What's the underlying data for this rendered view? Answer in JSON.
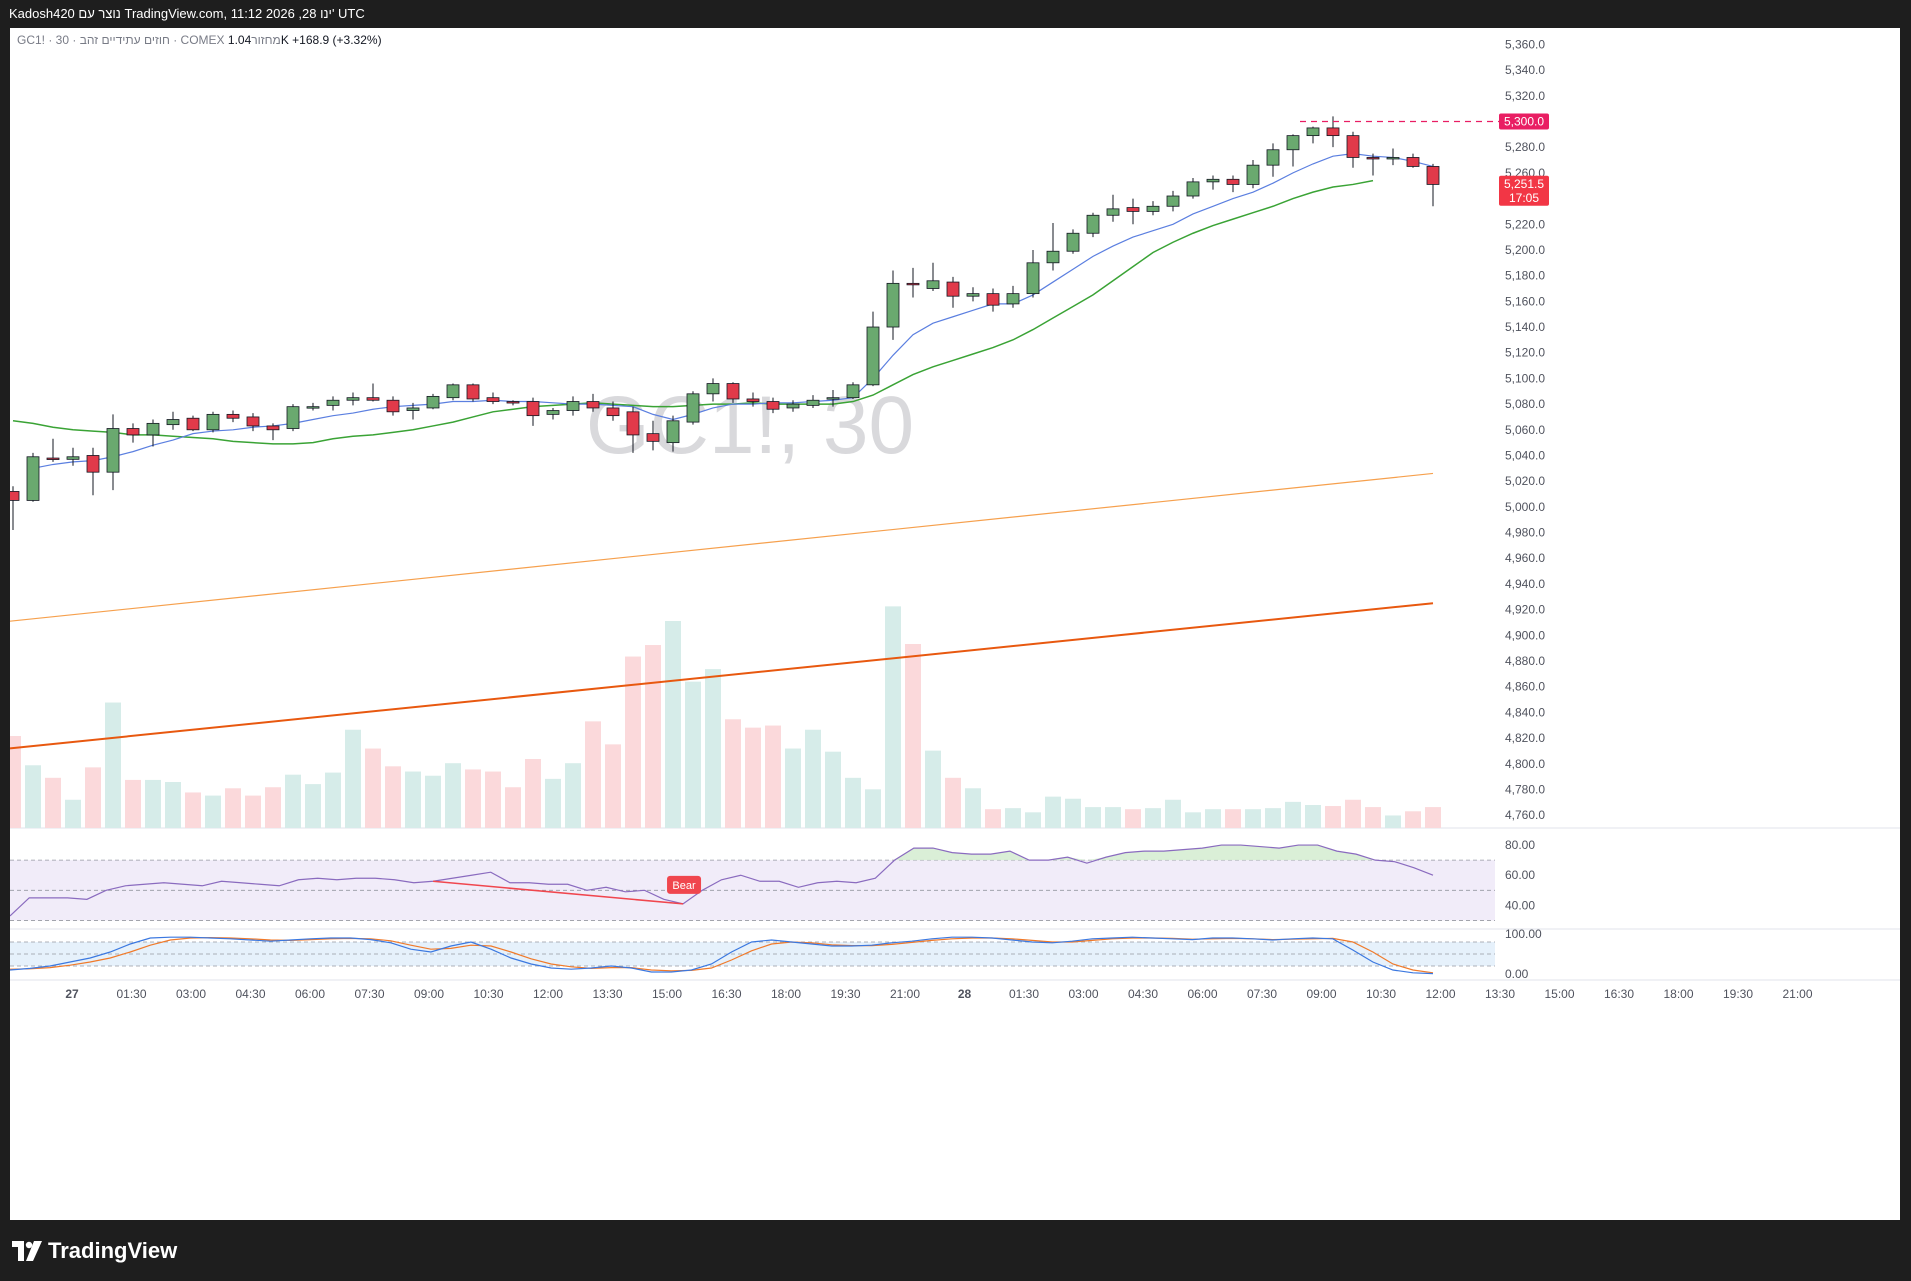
{
  "header": {
    "info": "Kadosh420 נוצר עם TradingView.com, 11:12 2026 ,28 ינו' UTC"
  },
  "legend": {
    "symbol": "GC1! · 30 · חוזים עתידיים זהב · COMEX",
    "volume_label": "מחזור",
    "volume_value": "1.04K",
    "change": "+168.9 (+3.32%)"
  },
  "watermark": "GC1!, 30",
  "footer": {
    "brand": "TradingView"
  },
  "colors": {
    "up": "#6aa96f",
    "down": "#e13a4a",
    "ema_fast": "#5b7fe0",
    "ema_mid": "#3aa335",
    "ema_slow": "#f6a04d",
    "ema_long": "#e8580f",
    "rsi": "#8a6bbf",
    "stoch_k": "#3b78e0",
    "stoch_d": "#f07a2a",
    "alert": "#e91e63",
    "bear": "#f0464e"
  },
  "chart_data": {
    "type": "candlestick",
    "symbol": "GC1!",
    "interval": "30",
    "ylim": [
      4750,
      5365
    ],
    "price_ticks": [
      "5,360.0",
      "5,340.0",
      "5,320.0",
      "5,300.0",
      "5,280.0",
      "5,260.0",
      "5,240.0",
      "5,220.0",
      "5,200.0",
      "5,180.0",
      "5,160.0",
      "5,140.0",
      "5,120.0",
      "5,100.0",
      "5,080.0",
      "5,060.0",
      "5,040.0",
      "5,020.0",
      "5,000.0",
      "4,980.0",
      "4,960.0",
      "4,940.0",
      "4,920.0",
      "4,900.0",
      "4,880.0",
      "4,860.0",
      "4,840.0",
      "4,820.0",
      "4,800.0",
      "4,780.0",
      "4,760.0"
    ],
    "time_labels": [
      "27",
      "01:30",
      "03:00",
      "04:30",
      "06:00",
      "07:30",
      "09:00",
      "10:30",
      "12:00",
      "13:30",
      "15:00",
      "16:30",
      "18:00",
      "19:30",
      "21:00",
      "28",
      "01:30",
      "03:00",
      "04:30",
      "06:00",
      "07:30",
      "09:00",
      "10:30",
      "12:00",
      "13:30",
      "15:00",
      "16:30",
      "18:00",
      "19:30",
      "21:00"
    ],
    "candles": [
      [
        5012,
        5016,
        4982,
        5005
      ],
      [
        5005,
        5042,
        5004,
        5039
      ],
      [
        5038,
        5053,
        5035,
        5037
      ],
      [
        5037,
        5046,
        5032,
        5039
      ],
      [
        5040,
        5046,
        5009,
        5027
      ],
      [
        5027,
        5072,
        5013,
        5061
      ],
      [
        5061,
        5065,
        5050,
        5056
      ],
      [
        5056,
        5068,
        5047,
        5065
      ],
      [
        5064,
        5074,
        5060,
        5068
      ],
      [
        5069,
        5071,
        5059,
        5060
      ],
      [
        5060,
        5074,
        5058,
        5072
      ],
      [
        5072,
        5075,
        5066,
        5069
      ],
      [
        5070,
        5073,
        5059,
        5063
      ],
      [
        5063,
        5065,
        5052,
        5060
      ],
      [
        5061,
        5080,
        5059,
        5078
      ],
      [
        5078,
        5081,
        5075,
        5078
      ],
      [
        5079,
        5086,
        5075,
        5083
      ],
      [
        5083,
        5089,
        5079,
        5085
      ],
      [
        5085,
        5096,
        5082,
        5083
      ],
      [
        5083,
        5086,
        5071,
        5074
      ],
      [
        5075,
        5081,
        5068,
        5077
      ],
      [
        5077,
        5088,
        5076,
        5086
      ],
      [
        5085,
        5096,
        5083,
        5095
      ],
      [
        5095,
        5096,
        5082,
        5084
      ],
      [
        5085,
        5089,
        5080,
        5082
      ],
      [
        5082,
        5083,
        5079,
        5081
      ],
      [
        5082,
        5085,
        5063,
        5071
      ],
      [
        5072,
        5077,
        5068,
        5075
      ],
      [
        5075,
        5086,
        5071,
        5082
      ],
      [
        5082,
        5088,
        5074,
        5077
      ],
      [
        5077,
        5082,
        5067,
        5071
      ],
      [
        5074,
        5078,
        5042,
        5056
      ],
      [
        5057,
        5067,
        5044,
        5051
      ],
      [
        5050,
        5071,
        5043,
        5067
      ],
      [
        5066,
        5090,
        5064,
        5088
      ],
      [
        5088,
        5100,
        5082,
        5096
      ],
      [
        5096,
        5097,
        5081,
        5084
      ],
      [
        5084,
        5089,
        5078,
        5082
      ],
      [
        5082,
        5085,
        5073,
        5076
      ],
      [
        5077,
        5083,
        5074,
        5080
      ],
      [
        5079,
        5087,
        5077,
        5083
      ],
      [
        5084,
        5091,
        5078,
        5085
      ],
      [
        5085,
        5097,
        5084,
        5095
      ],
      [
        5095,
        5152,
        5094,
        5140
      ],
      [
        5140,
        5184,
        5130,
        5174
      ],
      [
        5174,
        5186,
        5163,
        5173
      ],
      [
        5170,
        5190,
        5168,
        5176
      ],
      [
        5175,
        5179,
        5155,
        5164
      ],
      [
        5164,
        5171,
        5160,
        5166
      ],
      [
        5166,
        5170,
        5152,
        5157
      ],
      [
        5158,
        5172,
        5155,
        5166
      ],
      [
        5166,
        5200,
        5163,
        5190
      ],
      [
        5190,
        5221,
        5184,
        5199
      ],
      [
        5199,
        5216,
        5197,
        5213
      ],
      [
        5213,
        5229,
        5210,
        5227
      ],
      [
        5227,
        5243,
        5222,
        5232
      ],
      [
        5233,
        5240,
        5220,
        5230
      ],
      [
        5230,
        5238,
        5227,
        5234
      ],
      [
        5234,
        5246,
        5230,
        5242
      ],
      [
        5242,
        5256,
        5240,
        5253
      ],
      [
        5253,
        5258,
        5247,
        5255
      ],
      [
        5255,
        5258,
        5245,
        5251
      ],
      [
        5251,
        5270,
        5248,
        5266
      ],
      [
        5266,
        5283,
        5257,
        5278
      ],
      [
        5278,
        5290,
        5265,
        5289
      ],
      [
        5289,
        5296,
        5283,
        5295
      ],
      [
        5295,
        5304,
        5280,
        5289
      ],
      [
        5289,
        5292,
        5264,
        5272
      ],
      [
        5272,
        5275,
        5258,
        5271
      ],
      [
        5271,
        5279,
        5266,
        5272
      ],
      [
        5272,
        5275,
        5264,
        5265
      ],
      [
        5265,
        5267,
        5234,
        5251
      ]
    ],
    "volume": [
      440,
      300,
      240,
      135,
      290,
      600,
      230,
      230,
      220,
      170,
      155,
      190,
      155,
      195,
      255,
      210,
      265,
      470,
      380,
      295,
      270,
      250,
      310,
      280,
      270,
      195,
      330,
      235,
      310,
      510,
      400,
      820,
      875,
      990,
      700,
      760,
      520,
      480,
      490,
      380,
      470,
      365,
      240,
      185,
      1060,
      880,
      370,
      240,
      190,
      90,
      95,
      75,
      150,
      140,
      100,
      100,
      90,
      95,
      135,
      75,
      90,
      90,
      90,
      95,
      125,
      110,
      105,
      135,
      100,
      60,
      80,
      100
    ],
    "ema_fast": [
      null,
      5030,
      5033,
      5035,
      5036,
      5039,
      5043,
      5048,
      5052,
      5057,
      5059,
      5060,
      5062,
      5063,
      5065,
      5068,
      5071,
      5073,
      5076,
      5078,
      5079,
      5080,
      5082,
      5082,
      5083,
      5082,
      5082,
      5081,
      5080,
      5080,
      5079,
      5078,
      5072,
      5068,
      5072,
      5077,
      5080,
      5080,
      5081,
      5081,
      5082,
      5083,
      5085,
      5100,
      5118,
      5134,
      5143,
      5148,
      5153,
      5158,
      5158,
      5165,
      5175,
      5185,
      5195,
      5203,
      5210,
      5215,
      5220,
      5228,
      5234,
      5240,
      5245,
      5252,
      5260,
      5267,
      5273,
      5275,
      5273,
      5272,
      5269,
      5265
    ],
    "ema_mid": [
      5067,
      5065,
      5062,
      5060,
      5059,
      5058,
      5056,
      5056,
      5055,
      5054,
      5053,
      5051,
      5050,
      5049,
      5049,
      5050,
      5053,
      5055,
      5056,
      5058,
      5060,
      5063,
      5066,
      5070,
      5074,
      5076,
      5078,
      5079,
      5080,
      5081,
      5080,
      5079,
      5078,
      5078,
      5079,
      5080,
      5080,
      5081,
      5080,
      5080,
      5080,
      5080,
      5082,
      5087,
      5095,
      5103,
      5109,
      5114,
      5119,
      5124,
      5130,
      5138,
      5147,
      5156,
      5165,
      5176,
      5187,
      5198,
      5206,
      5213,
      5219,
      5224,
      5229,
      5234,
      5240,
      5245,
      5249,
      5251,
      5254
    ],
    "ema_slow": [
      4911,
      5026
    ],
    "ema_long": [
      4812,
      4925
    ],
    "alert_price": 5300,
    "last_price": "5,251.5",
    "countdown": "17:05",
    "rsi": {
      "ticks": [
        "80.00",
        "60.00",
        "40.00"
      ],
      "upper": 70,
      "middle": 50,
      "lower": 30,
      "values": [
        33,
        45,
        45,
        45,
        44,
        50,
        53,
        54,
        55,
        54,
        53,
        56,
        55,
        54,
        53,
        57,
        58,
        57,
        58,
        58,
        57,
        55,
        56,
        58,
        60,
        62,
        55,
        55,
        54,
        54,
        50,
        52,
        49,
        50,
        44,
        41,
        50,
        57,
        60,
        56,
        56,
        52,
        55,
        56,
        55,
        58,
        70,
        78,
        78,
        75,
        74,
        74,
        76,
        70,
        70,
        72,
        68,
        72,
        75,
        76,
        76,
        77,
        78,
        80,
        80,
        79,
        78,
        80,
        80,
        76,
        74,
        70,
        69,
        65,
        60
      ]
    },
    "rsi_divergence": {
      "label": "Bear",
      "from": 22,
      "to": 35
    },
    "stoch": {
      "ticks": [
        "100.00",
        "0.00"
      ],
      "upper": 80,
      "lower": 20,
      "k": [
        10,
        14,
        20,
        30,
        40,
        55,
        75,
        90,
        92,
        92,
        90,
        88,
        85,
        82,
        85,
        88,
        90,
        90,
        86,
        78,
        62,
        55,
        70,
        80,
        62,
        40,
        25,
        15,
        12,
        15,
        20,
        15,
        5,
        5,
        10,
        25,
        55,
        80,
        85,
        80,
        75,
        70,
        70,
        72,
        78,
        82,
        88,
        92,
        92,
        90,
        85,
        80,
        78,
        82,
        88,
        90,
        92,
        90,
        88,
        86,
        90,
        90,
        88,
        85,
        88,
        90,
        88,
        60,
        30,
        10,
        3,
        1
      ],
      "d": [
        12,
        13,
        16,
        22,
        30,
        40,
        55,
        72,
        85,
        90,
        91,
        90,
        88,
        85,
        84,
        86,
        88,
        89,
        88,
        83,
        72,
        62,
        64,
        72,
        70,
        55,
        38,
        25,
        18,
        14,
        16,
        16,
        10,
        8,
        9,
        15,
        35,
        58,
        75,
        80,
        78,
        73,
        71,
        71,
        74,
        79,
        84,
        88,
        90,
        90,
        88,
        84,
        80,
        80,
        84,
        88,
        90,
        90,
        89,
        87,
        88,
        89,
        88,
        86,
        87,
        88,
        89,
        80,
        55,
        25,
        10,
        3
      ]
    }
  }
}
